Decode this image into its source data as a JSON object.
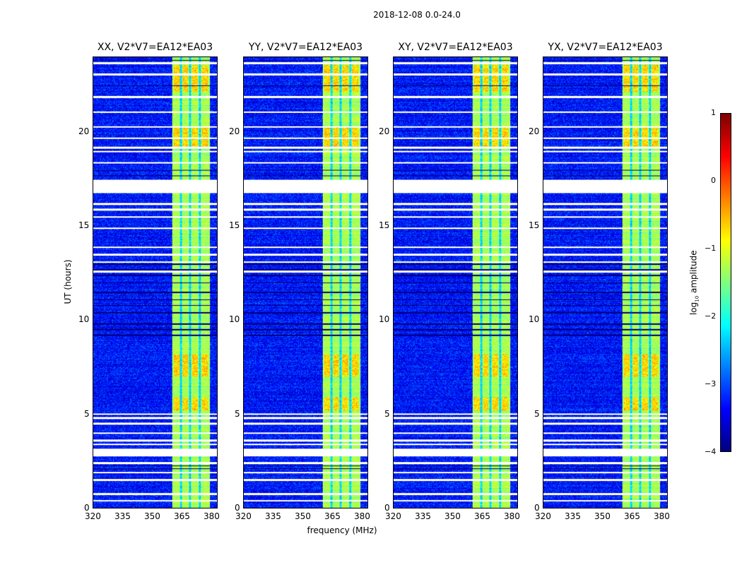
{
  "chart_data": {
    "type": "heatmap",
    "title": "2018-12-08 0.0-24.0",
    "xlabel": "frequency (MHz)",
    "ylabel": "UT (hours)",
    "xlim": [
      320,
      383.2
    ],
    "ylim": [
      0,
      24
    ],
    "xticks": [
      320,
      335,
      350,
      365,
      380
    ],
    "yticks": [
      0,
      5,
      10,
      15,
      20
    ],
    "colormap": "jet",
    "colorbar": {
      "label_main": "log",
      "label_sub": "10",
      "label_rest": " amplitude",
      "range": [
        -4,
        1
      ],
      "ticks": [
        1,
        0,
        -1,
        -2,
        -3,
        -4
      ]
    },
    "background_log_amp": -3.3,
    "band": {
      "start_mhz": 360,
      "end_mhz": 379.3,
      "log_amp": -1.3,
      "subband_gaps_mhz": [
        364.6,
        369.3,
        374.3
      ]
    },
    "bright_patches_hours": [
      [
        19.2,
        20.3
      ],
      [
        22.2,
        23.6
      ],
      [
        7.0,
        8.2
      ],
      [
        5.2,
        5.9
      ]
    ],
    "flagged_ranges_hours": [
      [
        16.8,
        17.5
      ],
      [
        2.77,
        3.15
      ]
    ],
    "flagged_lines_hours": [
      23.7,
      23.1,
      21.9,
      21.1,
      20.3,
      19.7,
      19.2,
      19.0,
      18.4,
      16.2,
      15.9,
      15.5,
      14.9,
      13.9,
      13.5,
      13.1,
      12.6,
      5.0,
      4.8,
      4.5,
      4.0,
      3.6,
      3.4,
      2.4,
      1.9,
      1.5,
      0.75,
      0.4
    ],
    "low_lines_hours": [
      23.85,
      22.5,
      18.0,
      17.7,
      13.0,
      12.7,
      12.4,
      12.0,
      11.5,
      11.1,
      10.8,
      10.4,
      9.8,
      9.5,
      9.2,
      2.4,
      2.25,
      2.1
    ],
    "panels": [
      {
        "title": "XX, V2*V7=EA12*EA03",
        "seed": 11
      },
      {
        "title": "YY, V2*V7=EA12*EA03",
        "seed": 23
      },
      {
        "title": "XY, V2*V7=EA12*EA03",
        "seed": 37
      },
      {
        "title": "YX, V2*V7=EA12*EA03",
        "seed": 51
      }
    ]
  }
}
